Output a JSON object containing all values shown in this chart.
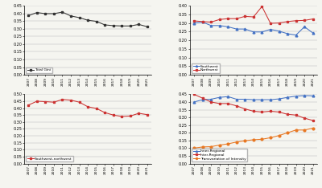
{
  "years": [
    2007,
    2008,
    2009,
    2010,
    2011,
    2012,
    2013,
    2014,
    2015,
    2016,
    2017,
    2018,
    2019,
    2020,
    2021
  ],
  "total_gini": [
    0.385,
    0.405,
    0.398,
    0.398,
    0.408,
    0.383,
    0.372,
    0.355,
    0.348,
    0.325,
    0.32,
    0.318,
    0.318,
    0.328,
    0.313
  ],
  "southwest": [
    0.3,
    0.305,
    0.285,
    0.285,
    0.278,
    0.265,
    0.265,
    0.248,
    0.248,
    0.263,
    0.253,
    0.238,
    0.23,
    0.278,
    0.242
  ],
  "northwest": [
    0.312,
    0.308,
    0.305,
    0.32,
    0.325,
    0.325,
    0.338,
    0.335,
    0.395,
    0.298,
    0.3,
    0.308,
    0.313,
    0.315,
    0.323
  ],
  "southwest_northwest": [
    0.422,
    0.45,
    0.447,
    0.443,
    0.463,
    0.458,
    0.443,
    0.41,
    0.398,
    0.368,
    0.35,
    0.34,
    0.343,
    0.363,
    0.353
  ],
  "inner_regional": [
    0.4,
    0.415,
    0.418,
    0.43,
    0.435,
    0.418,
    0.418,
    0.415,
    0.415,
    0.415,
    0.42,
    0.43,
    0.438,
    0.442,
    0.44
  ],
  "inter_regional": [
    0.45,
    0.425,
    0.4,
    0.39,
    0.39,
    0.375,
    0.355,
    0.34,
    0.335,
    0.34,
    0.335,
    0.32,
    0.315,
    0.295,
    0.28
  ],
  "transvariation": [
    0.1,
    0.108,
    0.11,
    0.12,
    0.128,
    0.14,
    0.148,
    0.155,
    0.158,
    0.168,
    0.182,
    0.2,
    0.218,
    0.218,
    0.23
  ],
  "color_black": "#333333",
  "color_blue": "#4472C4",
  "color_red": "#CC3333",
  "color_orange": "#E87722",
  "bg_color": "#f5f5f0"
}
